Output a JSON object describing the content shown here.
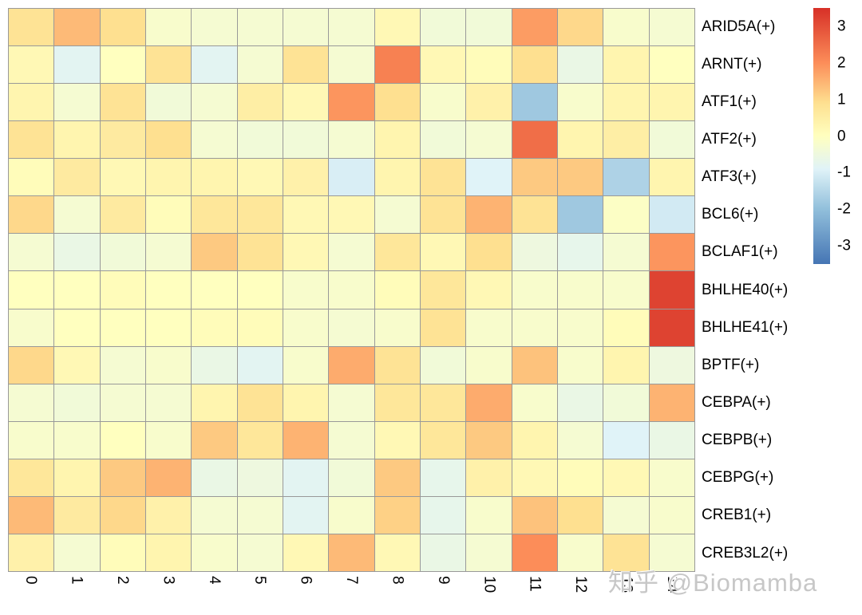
{
  "watermark": {
    "text": "知乎 @Biomamba"
  },
  "chart_data": {
    "type": "heatmap",
    "title": "",
    "xlabel": "",
    "ylabel": "",
    "grid": "on",
    "gridline_color": "#999999",
    "legend_position": "right",
    "columns": [
      "0",
      "1",
      "2",
      "3",
      "4",
      "5",
      "6",
      "7",
      "8",
      "9",
      "10",
      "11",
      "12",
      "13",
      "14"
    ],
    "rows": [
      "ARID5A(+)",
      "ARNT(+)",
      "ATF1(+)",
      "ATF2(+)",
      "ATF3(+)",
      "BCL6(+)",
      "BCLAF1(+)",
      "BHLHE40(+)",
      "BHLHE41(+)",
      "BPTF(+)",
      "CEBPA(+)",
      "CEBPB(+)",
      "CEBPG(+)",
      "CREB1(+)",
      "CREB3L2(+)"
    ],
    "values": [
      [
        0.8,
        1.4,
        0.9,
        -0.2,
        -0.3,
        -0.3,
        -0.3,
        -0.3,
        0.2,
        -0.4,
        -0.4,
        1.8,
        1.0,
        -0.2,
        -0.3
      ],
      [
        0.2,
        -0.8,
        0.0,
        0.8,
        -0.8,
        -0.3,
        0.8,
        -0.3,
        2.2,
        0.2,
        0.1,
        0.9,
        -0.6,
        0.3,
        0.0
      ],
      [
        0.3,
        -0.3,
        0.8,
        -0.4,
        -0.3,
        0.5,
        0.2,
        1.9,
        0.9,
        -0.2,
        0.4,
        -1.8,
        -0.2,
        0.3,
        0.3
      ],
      [
        0.8,
        0.3,
        0.6,
        0.9,
        -0.3,
        -0.4,
        -0.4,
        -0.3,
        0.3,
        -0.4,
        -0.3,
        2.5,
        0.3,
        0.5,
        -0.4
      ],
      [
        0.1,
        0.6,
        0.2,
        0.3,
        0.3,
        0.2,
        0.4,
        -1.0,
        0.3,
        0.8,
        -0.9,
        1.2,
        1.2,
        -1.6,
        0.3
      ],
      [
        1.0,
        -0.3,
        0.6,
        0.1,
        0.7,
        0.7,
        0.2,
        0.2,
        -0.3,
        0.8,
        1.5,
        0.8,
        -1.8,
        -0.1,
        -1.1
      ],
      [
        -0.3,
        -0.6,
        -0.4,
        -0.3,
        1.2,
        0.8,
        0.2,
        -0.3,
        0.7,
        0.2,
        0.9,
        -0.5,
        -0.7,
        -0.3,
        1.9
      ],
      [
        0.0,
        0.0,
        0.1,
        0.0,
        0.0,
        0.0,
        -0.2,
        -0.2,
        0.1,
        0.7,
        0.2,
        -0.2,
        -0.2,
        -0.2,
        3.2
      ],
      [
        -0.2,
        0.0,
        0.0,
        0.0,
        0.1,
        0.1,
        -0.2,
        -0.3,
        -0.2,
        0.8,
        -0.2,
        -0.2,
        -0.2,
        0.1,
        3.2
      ],
      [
        1.0,
        0.2,
        -0.3,
        -0.2,
        -0.6,
        -0.8,
        -0.2,
        1.6,
        0.8,
        -0.4,
        -0.2,
        1.3,
        -0.2,
        0.3,
        -0.5
      ],
      [
        -0.3,
        -0.4,
        -0.3,
        -0.3,
        0.3,
        0.8,
        0.3,
        -0.3,
        0.7,
        0.7,
        1.6,
        -0.2,
        -0.6,
        -0.4,
        1.5
      ],
      [
        -0.2,
        -0.2,
        0.0,
        -0.2,
        1.2,
        0.7,
        1.5,
        -0.3,
        0.2,
        0.7,
        1.2,
        0.3,
        -0.3,
        -0.9,
        -0.6
      ],
      [
        0.7,
        0.3,
        1.2,
        1.5,
        -0.6,
        -0.5,
        -0.8,
        -0.4,
        1.2,
        -0.7,
        0.4,
        0.2,
        0.1,
        0.2,
        -0.2
      ],
      [
        1.4,
        0.6,
        1.0,
        0.4,
        -0.3,
        -0.3,
        -0.8,
        -0.2,
        1.1,
        -0.7,
        -0.2,
        1.3,
        0.9,
        -0.3,
        -0.2
      ],
      [
        0.4,
        -0.3,
        0.1,
        0.3,
        -0.2,
        -0.3,
        0.2,
        1.4,
        0.2,
        -0.6,
        -0.3,
        2.0,
        -0.2,
        0.8,
        -0.3
      ]
    ],
    "value_domain": [
      -3.5,
      3.5
    ],
    "colorbar_ticks": [
      3,
      2,
      1,
      0,
      -1,
      -2,
      -3
    ],
    "colormap_stops": [
      {
        "v": -3.5,
        "c": "#4575b4"
      },
      {
        "v": -2.0,
        "c": "#91bfdb"
      },
      {
        "v": -0.9,
        "c": "#e0f3f8"
      },
      {
        "v": 0.0,
        "c": "#ffffbf"
      },
      {
        "v": 0.9,
        "c": "#fee090"
      },
      {
        "v": 2.0,
        "c": "#fc8d59"
      },
      {
        "v": 3.5,
        "c": "#d73027"
      }
    ]
  }
}
